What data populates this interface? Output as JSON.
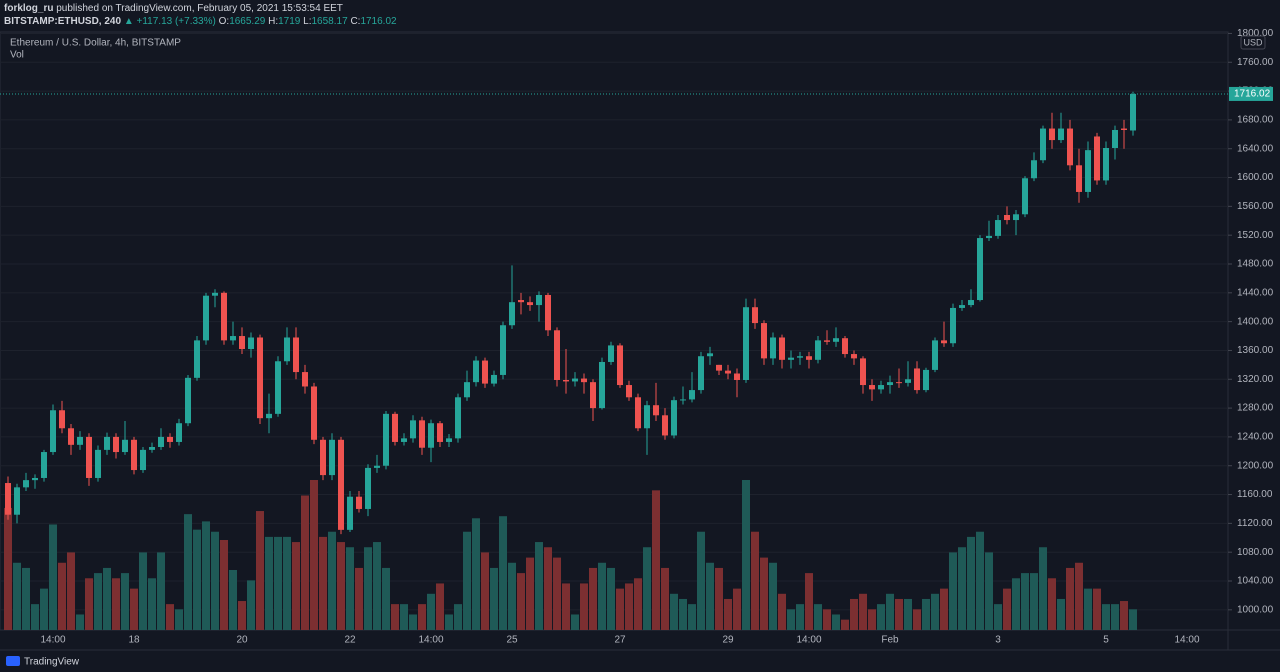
{
  "header": {
    "user": "forklog_ru",
    "published": "published on TradingView.com, February 05, 2021 15:53:54 EET",
    "symbol": "BITSTAMP:ETHUSD, 240",
    "change": "▲ +117.13 (+7.33%)",
    "ohlc_labels": [
      "O:",
      "H:",
      "L:",
      "C:"
    ]
  },
  "legend": {
    "instrument": "Ethereum / U.S. Dollar, 4h, BITSTAMP",
    "volume": "Vol"
  },
  "currency": "USD",
  "brand": "TradingView",
  "chart_data": {
    "type": "candlestick",
    "up_color": "#26a69a",
    "down_color": "#ef5350",
    "volume_up_color": "#1f5a57",
    "volume_down_color": "#7c2f31",
    "grid": true,
    "categories": [
      null,
      null,
      null,
      null,
      null,
      "14:00",
      null,
      null,
      null,
      null,
      null,
      null,
      null,
      null,
      "18",
      null,
      null,
      null,
      null,
      null,
      null,
      null,
      null,
      null,
      null,
      null,
      "20",
      null,
      null,
      null,
      null,
      null,
      null,
      null,
      null,
      null,
      null,
      null,
      "22",
      null,
      null,
      null,
      null,
      null,
      null,
      null,
      null,
      "14:00",
      null,
      null,
      null,
      null,
      null,
      null,
      null,
      null,
      "25",
      null,
      null,
      null,
      null,
      null,
      null,
      null,
      null,
      null,
      null,
      null,
      "27",
      null,
      null,
      null,
      null,
      null,
      null,
      null,
      null,
      null,
      null,
      null,
      "29",
      null,
      null,
      null,
      null,
      null,
      null,
      null,
      null,
      "14:00",
      null,
      null,
      null,
      null,
      null,
      null,
      null,
      null,
      "Feb",
      null,
      null,
      null,
      null,
      null,
      null,
      null,
      null,
      null,
      null,
      null,
      "3",
      null,
      null,
      null,
      null,
      null,
      null,
      null,
      null,
      null,
      null,
      null,
      "5",
      null,
      null,
      null,
      null,
      null,
      null,
      null,
      null,
      "14:00",
      null,
      null,
      null,
      null
    ],
    "open": [
      1176,
      1132,
      1170,
      1180,
      1183,
      1219,
      1277,
      1252,
      1229,
      1240,
      1183,
      1222,
      1240,
      1219,
      1236,
      1194,
      1222,
      1226,
      1240,
      1233,
      1259,
      1322,
      1374,
      1436,
      1440,
      1374,
      1380,
      1362,
      1378,
      1266,
      1272,
      1345,
      1378,
      1330,
      1310,
      1236,
      1187,
      1236,
      1111,
      1157,
      1140,
      1197,
      1200,
      1272,
      1233,
      1238,
      1263,
      1225,
      1259,
      1233,
      1238,
      1295,
      1316,
      1346,
      1314,
      1326,
      1395,
      1430,
      1427,
      1423,
      1437,
      1388,
      1319,
      1317,
      1321,
      1316,
      1280,
      1344,
      1367,
      1312,
      1295,
      1252,
      1284,
      1270,
      1242,
      1291,
      1292,
      1305,
      1352,
      1340,
      1332,
      1328,
      1319,
      1420,
      1398,
      1349,
      1378,
      1347,
      1350,
      1352,
      1347,
      1374,
      1372,
      1377,
      1355,
      1349,
      1312,
      1306,
      1312,
      1316,
      1315,
      1335,
      1305,
      1333,
      1374,
      1370,
      1419,
      1423,
      1430,
      1516,
      1519,
      1548,
      1541,
      1549,
      1599,
      1624,
      1668,
      1652,
      1668,
      1617,
      1580,
      1657,
      1596,
      1641,
      1668,
      1665.29,
      null,
      null,
      null,
      null,
      null,
      null,
      null,
      null,
      null,
      null
    ],
    "high": [
      1185,
      1175,
      1190,
      1188,
      1222,
      1285,
      1290,
      1258,
      1248,
      1245,
      1228,
      1246,
      1245,
      1262,
      1240,
      1226,
      1232,
      1252,
      1245,
      1265,
      1326,
      1380,
      1440,
      1445,
      1442,
      1400,
      1392,
      1385,
      1382,
      1300,
      1352,
      1392,
      1392,
      1340,
      1315,
      1240,
      1245,
      1240,
      1165,
      1165,
      1202,
      1215,
      1276,
      1275,
      1245,
      1270,
      1268,
      1264,
      1262,
      1244,
      1300,
      1332,
      1352,
      1350,
      1332,
      1400,
      1478,
      1440,
      1435,
      1442,
      1440,
      1392,
      1362,
      1330,
      1328,
      1320,
      1350,
      1372,
      1370,
      1318,
      1300,
      1290,
      1315,
      1280,
      1296,
      1310,
      1330,
      1358,
      1365,
      1340,
      1340,
      1335,
      1432,
      1432,
      1402,
      1385,
      1382,
      1360,
      1358,
      1358,
      1380,
      1388,
      1392,
      1380,
      1360,
      1352,
      1320,
      1318,
      1325,
      1335,
      1345,
      1345,
      1336,
      1378,
      1400,
      1425,
      1430,
      1445,
      1520,
      1540,
      1548,
      1560,
      1555,
      1602,
      1635,
      1672,
      1690,
      1690,
      1680,
      1640,
      1650,
      1662,
      1650,
      1672,
      1680,
      1719.0,
      null,
      null,
      null,
      null,
      null,
      null,
      null,
      null,
      null,
      null
    ],
    "low": [
      1125,
      1120,
      1165,
      1168,
      1178,
      1215,
      1245,
      1215,
      1222,
      1172,
      1178,
      1215,
      1210,
      1215,
      1188,
      1190,
      1218,
      1222,
      1225,
      1228,
      1255,
      1318,
      1368,
      1420,
      1368,
      1368,
      1355,
      1350,
      1258,
      1245,
      1268,
      1340,
      1320,
      1300,
      1230,
      1180,
      1180,
      1105,
      1108,
      1135,
      1130,
      1190,
      1195,
      1228,
      1228,
      1232,
      1215,
      1205,
      1226,
      1226,
      1232,
      1290,
      1310,
      1308,
      1310,
      1320,
      1390,
      1410,
      1415,
      1400,
      1380,
      1310,
      1300,
      1310,
      1300,
      1262,
      1278,
      1340,
      1308,
      1290,
      1248,
      1215,
      1262,
      1236,
      1238,
      1285,
      1288,
      1300,
      1340,
      1326,
      1320,
      1295,
      1315,
      1390,
      1340,
      1340,
      1335,
      1335,
      1340,
      1335,
      1342,
      1368,
      1365,
      1350,
      1340,
      1300,
      1290,
      1300,
      1300,
      1308,
      1310,
      1300,
      1302,
      1330,
      1365,
      1365,
      1415,
      1420,
      1428,
      1512,
      1515,
      1535,
      1520,
      1545,
      1595,
      1620,
      1640,
      1648,
      1610,
      1565,
      1572,
      1590,
      1590,
      1625,
      1640,
      1658.17,
      null,
      null,
      null,
      null,
      null,
      null,
      null,
      null,
      null,
      null
    ],
    "close": [
      1132,
      1170,
      1180,
      1183,
      1219,
      1277,
      1252,
      1229,
      1240,
      1183,
      1222,
      1240,
      1219,
      1236,
      1194,
      1222,
      1226,
      1240,
      1233,
      1259,
      1322,
      1374,
      1436,
      1440,
      1374,
      1380,
      1362,
      1378,
      1266,
      1272,
      1345,
      1378,
      1330,
      1310,
      1236,
      1187,
      1236,
      1111,
      1157,
      1140,
      1197,
      1200,
      1272,
      1233,
      1238,
      1263,
      1225,
      1259,
      1233,
      1238,
      1295,
      1316,
      1346,
      1314,
      1326,
      1395,
      1427,
      1427,
      1423,
      1437,
      1388,
      1319,
      1317,
      1321,
      1316,
      1280,
      1344,
      1367,
      1312,
      1295,
      1252,
      1284,
      1270,
      1242,
      1291,
      1292,
      1305,
      1352,
      1356,
      1332,
      1328,
      1319,
      1420,
      1398,
      1349,
      1378,
      1347,
      1350,
      1352,
      1347,
      1374,
      1372,
      1377,
      1355,
      1349,
      1312,
      1306,
      1312,
      1316,
      1315,
      1320,
      1305,
      1333,
      1374,
      1370,
      1419,
      1423,
      1430,
      1516,
      1519,
      1541,
      1541,
      1549,
      1599,
      1624,
      1668,
      1652,
      1668,
      1617,
      1580,
      1638,
      1596,
      1641,
      1666,
      1666,
      1716.02,
      null,
      null,
      null,
      null,
      null,
      null,
      null,
      null,
      null,
      null
    ],
    "volume": [
      118,
      65,
      60,
      25,
      40,
      102,
      65,
      75,
      15,
      50,
      55,
      60,
      50,
      55,
      40,
      75,
      50,
      75,
      25,
      20,
      112,
      97,
      105,
      95,
      87,
      58,
      28,
      48,
      115,
      90,
      90,
      90,
      85,
      130,
      145,
      90,
      95,
      85,
      80,
      60,
      80,
      85,
      60,
      25,
      25,
      15,
      25,
      35,
      45,
      15,
      25,
      95,
      108,
      75,
      60,
      110,
      65,
      55,
      70,
      85,
      80,
      70,
      45,
      15,
      45,
      60,
      65,
      60,
      40,
      45,
      50,
      80,
      135,
      60,
      35,
      30,
      25,
      95,
      65,
      60,
      30,
      40,
      145,
      95,
      70,
      65,
      35,
      20,
      25,
      55,
      25,
      20,
      15,
      10,
      30,
      35,
      20,
      25,
      35,
      30,
      30,
      20,
      30,
      35,
      40,
      75,
      80,
      90,
      95,
      75,
      25,
      40,
      50,
      55,
      55,
      80,
      50,
      30,
      60,
      65,
      40,
      40,
      25,
      25,
      28,
      20,
      null,
      null,
      null,
      null,
      null,
      null,
      null,
      null,
      null,
      null
    ],
    "ylim": [
      972,
      1802
    ],
    "yticks": [
      {
        "value": 1000,
        "label": "1000.00"
      },
      {
        "value": 1040,
        "label": "1040.00"
      },
      {
        "value": 1080,
        "label": "1080.00"
      },
      {
        "value": 1120,
        "label": "1120.00"
      },
      {
        "value": 1160,
        "label": "1160.00"
      },
      {
        "value": 1200,
        "label": "1200.00"
      },
      {
        "value": 1240,
        "label": "1240.00"
      },
      {
        "value": 1280,
        "label": "1280.00"
      },
      {
        "value": 1320,
        "label": "1320.00"
      },
      {
        "value": 1360,
        "label": "1360.00"
      },
      {
        "value": 1400,
        "label": "1400.00"
      },
      {
        "value": 1440,
        "label": "1440.00"
      },
      {
        "value": 1480,
        "label": "1480.00"
      },
      {
        "value": 1520,
        "label": "1520.00"
      },
      {
        "value": 1560,
        "label": "1560.00"
      },
      {
        "value": 1600,
        "label": "1600.00"
      },
      {
        "value": 1640,
        "label": "1640.00"
      },
      {
        "value": 1680,
        "label": "1680.00"
      },
      {
        "value": 1720,
        "label": "1720.00"
      },
      {
        "value": 1760,
        "label": "1760.00"
      },
      {
        "value": 1800,
        "label": "1800.00"
      }
    ]
  }
}
